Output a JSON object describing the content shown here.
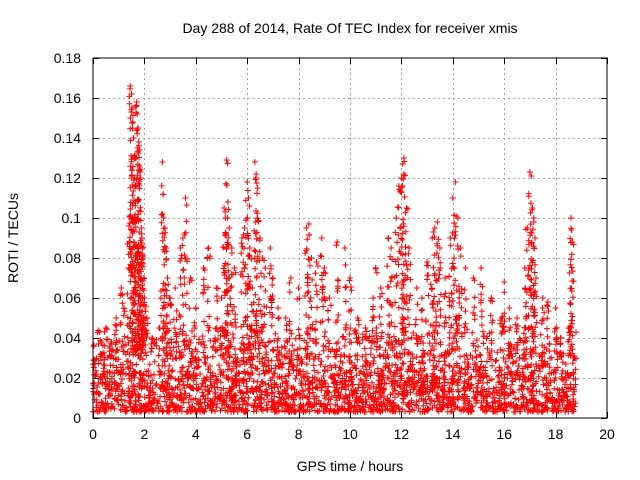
{
  "chart_data": {
    "type": "scatter",
    "title": "Day 288 of 2014, Rate Of TEC Index for receiver xmis",
    "xlabel": "GPS time / hours",
    "ylabel": "ROTI / TECUs",
    "xlim": [
      0,
      20
    ],
    "ylim": [
      0,
      0.18
    ],
    "xticks": [
      0,
      2,
      4,
      6,
      8,
      10,
      12,
      14,
      16,
      18,
      20
    ],
    "yticks": [
      0,
      0.02,
      0.04,
      0.06,
      0.08,
      0.1,
      0.12,
      0.14,
      0.16,
      0.18
    ],
    "xtick_labels": [
      "0",
      "2",
      "4",
      "6",
      "8",
      "10",
      "12",
      "14",
      "16",
      "18",
      "20"
    ],
    "ytick_labels": [
      "0",
      "0.02",
      "0.04",
      "0.06",
      "0.08",
      "0.1",
      "0.12",
      "0.14",
      "0.16",
      "0.18"
    ],
    "grid": true,
    "marker": "+",
    "color": "#ff0000",
    "series": [
      {
        "name": "ROTI",
        "points": [
          [
            0.1,
            0.021
          ],
          [
            0.3,
            0.032
          ],
          [
            0.5,
            0.045
          ],
          [
            0.7,
            0.038
          ],
          [
            0.9,
            0.05
          ],
          [
            1.1,
            0.065
          ],
          [
            1.2,
            0.055
          ],
          [
            1.4,
            0.096
          ],
          [
            1.45,
            0.166
          ],
          [
            1.5,
            0.162
          ],
          [
            1.52,
            0.155
          ],
          [
            1.55,
            0.148
          ],
          [
            1.58,
            0.14
          ],
          [
            1.6,
            0.13
          ],
          [
            1.62,
            0.12
          ],
          [
            1.65,
            0.116
          ],
          [
            1.7,
            0.158
          ],
          [
            1.72,
            0.152
          ],
          [
            1.75,
            0.145
          ],
          [
            1.78,
            0.138
          ],
          [
            1.8,
            0.134
          ],
          [
            1.82,
            0.125
          ],
          [
            1.85,
            0.12
          ],
          [
            1.88,
            0.095
          ],
          [
            1.9,
            0.09
          ],
          [
            1.92,
            0.085
          ],
          [
            1.95,
            0.08
          ],
          [
            1.98,
            0.07
          ],
          [
            2.0,
            0.06
          ],
          [
            2.1,
            0.05
          ],
          [
            2.3,
            0.04
          ],
          [
            2.6,
            0.045
          ],
          [
            2.7,
            0.128
          ],
          [
            2.75,
            0.1
          ],
          [
            2.8,
            0.095
          ],
          [
            2.85,
            0.085
          ],
          [
            2.9,
            0.07
          ],
          [
            3.0,
            0.06
          ],
          [
            3.2,
            0.065
          ],
          [
            3.4,
            0.085
          ],
          [
            3.5,
            0.09
          ],
          [
            3.6,
            0.11
          ],
          [
            3.8,
            0.07
          ],
          [
            4.0,
            0.055
          ],
          [
            4.3,
            0.075
          ],
          [
            4.5,
            0.085
          ],
          [
            4.8,
            0.065
          ],
          [
            5.0,
            0.06
          ],
          [
            5.1,
            0.105
          ],
          [
            5.15,
            0.1
          ],
          [
            5.2,
            0.129
          ],
          [
            5.25,
            0.108
          ],
          [
            5.3,
            0.095
          ],
          [
            5.4,
            0.085
          ],
          [
            5.5,
            0.075
          ],
          [
            5.8,
            0.09
          ],
          [
            5.9,
            0.095
          ],
          [
            6.0,
            0.118
          ],
          [
            6.05,
            0.11
          ],
          [
            6.1,
            0.085
          ],
          [
            6.2,
            0.065
          ],
          [
            6.3,
            0.128
          ],
          [
            6.35,
            0.122
          ],
          [
            6.4,
            0.1
          ],
          [
            6.5,
            0.09
          ],
          [
            6.6,
            0.08
          ],
          [
            6.7,
            0.075
          ],
          [
            6.9,
            0.085
          ],
          [
            7.0,
            0.07
          ],
          [
            7.2,
            0.055
          ],
          [
            7.5,
            0.05
          ],
          [
            7.7,
            0.07
          ],
          [
            8.0,
            0.065
          ],
          [
            8.3,
            0.095
          ],
          [
            8.4,
            0.097
          ],
          [
            8.5,
            0.08
          ],
          [
            8.7,
            0.078
          ],
          [
            8.9,
            0.09
          ],
          [
            9.0,
            0.075
          ],
          [
            9.2,
            0.06
          ],
          [
            9.5,
            0.088
          ],
          [
            9.8,
            0.085
          ],
          [
            10.0,
            0.07
          ],
          [
            10.3,
            0.05
          ],
          [
            10.6,
            0.045
          ],
          [
            10.9,
            0.06
          ],
          [
            11.0,
            0.075
          ],
          [
            11.2,
            0.065
          ],
          [
            11.5,
            0.09
          ],
          [
            11.6,
            0.085
          ],
          [
            11.8,
            0.1
          ],
          [
            11.9,
            0.116
          ],
          [
            12.0,
            0.12
          ],
          [
            12.05,
            0.127
          ],
          [
            12.1,
            0.13
          ],
          [
            12.2,
            0.105
          ],
          [
            12.3,
            0.085
          ],
          [
            12.6,
            0.065
          ],
          [
            12.8,
            0.06
          ],
          [
            13.0,
            0.078
          ],
          [
            13.2,
            0.09
          ],
          [
            13.3,
            0.095
          ],
          [
            13.4,
            0.098
          ],
          [
            13.5,
            0.085
          ],
          [
            13.7,
            0.07
          ],
          [
            13.9,
            0.09
          ],
          [
            14.0,
            0.11
          ],
          [
            14.1,
            0.118
          ],
          [
            14.2,
            0.1
          ],
          [
            14.3,
            0.085
          ],
          [
            14.5,
            0.075
          ],
          [
            14.8,
            0.07
          ],
          [
            15.1,
            0.075
          ],
          [
            15.5,
            0.06
          ],
          [
            15.9,
            0.05
          ],
          [
            16.0,
            0.068
          ],
          [
            16.2,
            0.055
          ],
          [
            16.5,
            0.05
          ],
          [
            16.8,
            0.075
          ],
          [
            16.9,
            0.095
          ],
          [
            17.0,
            0.123
          ],
          [
            17.05,
            0.121
          ],
          [
            17.1,
            0.105
          ],
          [
            17.15,
            0.1
          ],
          [
            17.2,
            0.09
          ],
          [
            17.5,
            0.06
          ],
          [
            17.7,
            0.058
          ],
          [
            18.0,
            0.055
          ],
          [
            18.2,
            0.04
          ],
          [
            18.5,
            0.045
          ],
          [
            18.6,
            0.1
          ],
          [
            18.62,
            0.094
          ],
          [
            18.65,
            0.088
          ],
          [
            18.7,
            0.03
          ]
        ]
      }
    ],
    "baseline_band": {
      "description_free": true,
      "x_start": 0,
      "x_end": 18.8,
      "y_min": 0.003,
      "y_max": 0.035
    }
  }
}
